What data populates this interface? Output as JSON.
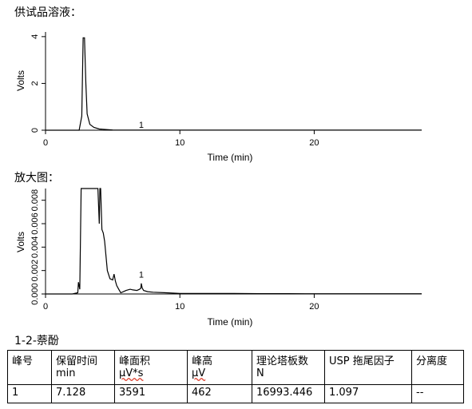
{
  "sections": {
    "sample_title": "供试品溶液：",
    "zoom_title": "放大图：",
    "compound_title": "1-2-萘酚"
  },
  "chart_data": [
    {
      "type": "line",
      "xlabel": "Time (min)",
      "ylabel": "Volts",
      "xlim": [
        0,
        28
      ],
      "ylim": [
        0,
        4.2
      ],
      "xticks": [
        0,
        10,
        20
      ],
      "yticks": [
        0,
        2,
        4
      ],
      "peak_label": {
        "text": "1",
        "x": 7.128,
        "y": 0.0008
      },
      "series": [
        {
          "x": [
            0,
            2.5,
            2.7,
            2.8,
            2.9,
            3.0,
            3.1,
            3.3,
            3.6,
            4.0,
            5.0,
            10,
            20,
            28
          ],
          "y": [
            0,
            0.0,
            0.6,
            3.95,
            3.95,
            2.0,
            0.7,
            0.25,
            0.12,
            0.05,
            0.01,
            0.002,
            0.002,
            0.002
          ]
        }
      ]
    },
    {
      "type": "line",
      "xlabel": "Time (min)",
      "ylabel": "Volts",
      "xlim": [
        0,
        28
      ],
      "ylim": [
        0,
        0.009
      ],
      "xticks": [
        0,
        10,
        20
      ],
      "yticks": [
        0,
        0.002,
        0.004,
        0.006,
        0.008
      ],
      "ytick_labels": [
        "0.000",
        "0.002",
        "0.004",
        "0.006",
        "0.008"
      ],
      "peak_label": {
        "text": "1",
        "x": 7.128,
        "y": 0.0012
      },
      "series": [
        {
          "x": [
            0,
            1.0,
            2.0,
            2.4,
            2.45,
            2.55,
            2.65,
            2.75,
            2.8,
            3.0,
            3.3,
            3.5,
            3.9,
            4.0,
            4.05,
            4.1,
            4.2,
            4.3,
            4.4,
            4.6,
            4.8,
            5.0,
            5.1,
            5.2,
            5.3,
            5.5,
            5.6,
            5.8,
            6.0,
            6.3,
            6.5,
            6.8,
            7.0,
            7.1,
            7.13,
            7.2,
            7.3,
            7.6,
            8.0,
            9.0,
            10,
            12,
            14,
            16,
            18,
            20,
            22,
            24,
            26,
            28
          ],
          "y": [
            0.0,
            0.0,
            0.0,
            0.0001,
            0.001,
            0.0004,
            0.009,
            0.009,
            0.009,
            0.009,
            0.009,
            0.009,
            0.009,
            0.006,
            0.009,
            0.009,
            0.0055,
            0.0052,
            0.0045,
            0.002,
            0.0013,
            0.0012,
            0.0017,
            0.0011,
            0.0007,
            0.0003,
            0.0001,
            0.0002,
            0.0003,
            0.0004,
            0.00035,
            0.0003,
            0.0004,
            0.0005,
            0.0009,
            0.0005,
            0.0003,
            0.0002,
            0.00015,
            0.0001,
            5e-05,
            5e-05,
            5e-05,
            3e-05,
            3e-05,
            2e-05,
            2e-05,
            2e-05,
            2e-05,
            2e-05
          ]
        }
      ]
    }
  ],
  "table": {
    "headers": [
      {
        "name": "峰号",
        "unit": ""
      },
      {
        "name": "保留时间",
        "unit": "min"
      },
      {
        "name": "峰面积",
        "unit": "μV*s"
      },
      {
        "name": "峰高",
        "unit": "μV"
      },
      {
        "name": "理论塔板数",
        "unit": "N"
      },
      {
        "name": "USP 拖尾因子",
        "unit": ""
      },
      {
        "name": "分离度",
        "unit": ""
      }
    ],
    "rows": [
      [
        "1",
        "7.128",
        "3591",
        "462",
        "16993.446",
        "1.097",
        "--"
      ]
    ]
  }
}
